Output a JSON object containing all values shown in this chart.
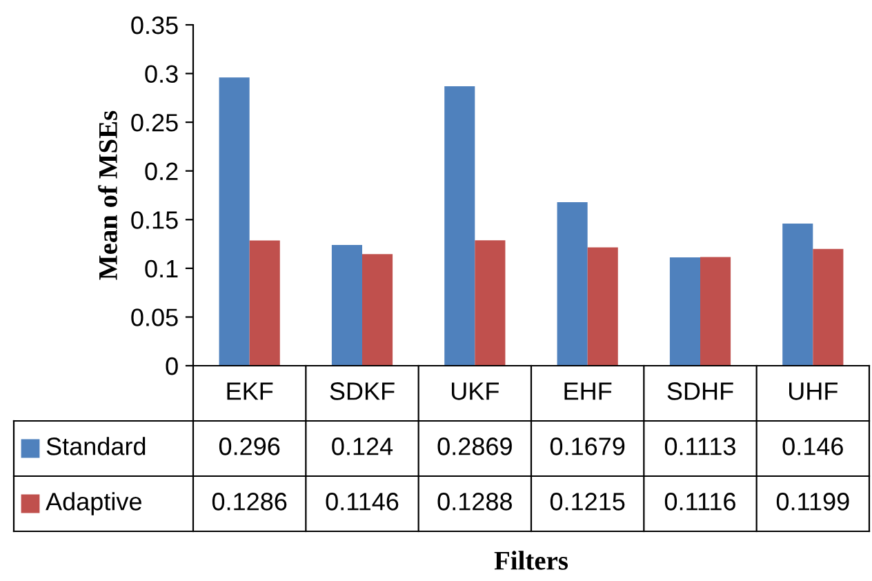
{
  "chart_data": {
    "type": "bar",
    "annotations": [
      "Filters"
    ],
    "ylabel": "Mean of MSEs",
    "categories": [
      "EKF",
      "SDKF",
      "UKF",
      "EHF",
      "SDHF",
      "UHF"
    ],
    "series": [
      {
        "name": "Standard",
        "color": "#4f81bd",
        "values": [
          0.296,
          0.124,
          0.2869,
          0.1679,
          0.1113,
          0.146
        ]
      },
      {
        "name": "Adaptive",
        "color": "#c0504d",
        "values": [
          0.1286,
          0.1146,
          0.1288,
          0.1215,
          0.1116,
          0.1199
        ]
      }
    ],
    "ylim": [
      0,
      0.35
    ],
    "yticks": [
      0,
      0.05,
      0.1,
      0.15,
      0.2,
      0.25,
      0.3,
      0.35
    ],
    "grid": false,
    "legend": "bottom left",
    "data_labels": true
  }
}
